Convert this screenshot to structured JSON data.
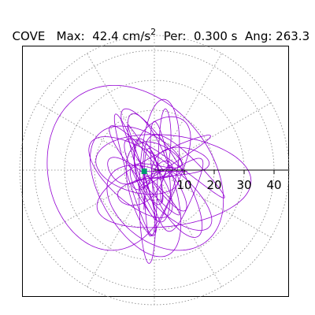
{
  "header": {
    "station": "COVE",
    "max_label": "Max:",
    "max_value": "42.4",
    "max_unit": "cm/s",
    "max_unit_exp": "2",
    "per_label": "Per:",
    "per_value": "0.300 s",
    "ang_label": "Ang:",
    "ang_value": "263.3"
  },
  "chart_data": {
    "type": "scatter",
    "description_series": "horizontal particle-motion hodogram (acceleration orbit)",
    "ring_ticks": [
      10,
      20,
      30,
      40
    ],
    "tick_labels": [
      "10",
      "20",
      "30",
      "40"
    ],
    "r_max": 45,
    "grid": "dotted polar rings and spokes every 30 degrees",
    "peak": {
      "value": 42.4,
      "angle_deg": 263.3
    },
    "colors": {
      "trace": "#9400d3",
      "marker": "#009970",
      "grid": "#808080",
      "frame": "#000000"
    }
  }
}
